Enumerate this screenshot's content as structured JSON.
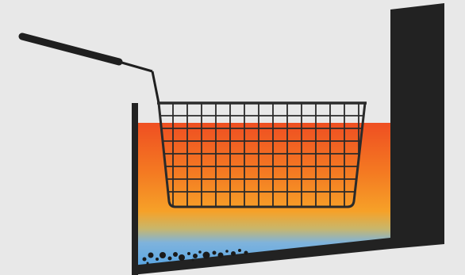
{
  "colors": {
    "background": "#e8e8e8",
    "frame": "#222222",
    "oil_top": "#ef5a24",
    "oil_mid": "#f7931e",
    "oil_low": "#f2b233",
    "water": "#5aa9e6",
    "basket": "#2a2a2a"
  },
  "icons": {
    "fryer": "deep-fryer-icon",
    "basket": "fryer-basket-icon",
    "handle": "basket-handle-icon",
    "sediment": "sediment-particles-icon"
  }
}
